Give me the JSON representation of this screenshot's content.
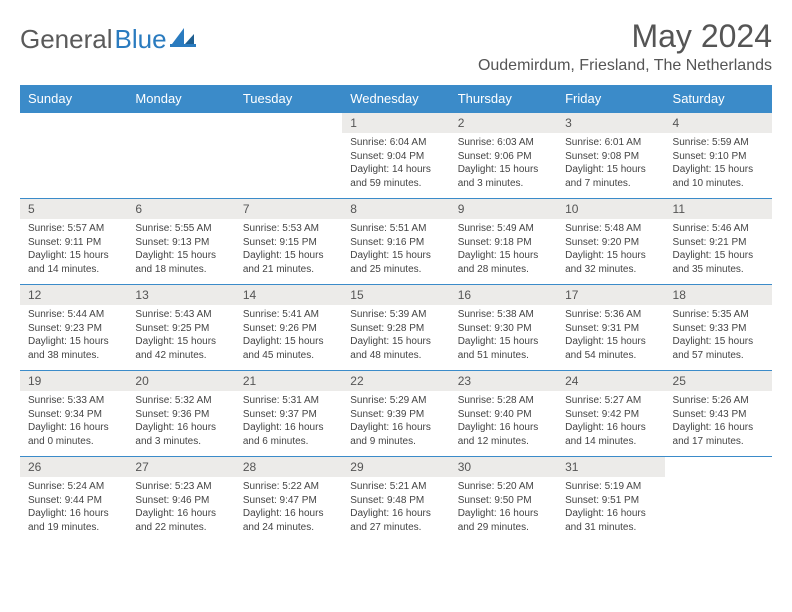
{
  "brand": {
    "part1": "General",
    "part2": "Blue"
  },
  "title": "May 2024",
  "location": "Oudemirdum, Friesland, The Netherlands",
  "colors": {
    "header_bg": "#3b8bc9",
    "header_text": "#ffffff",
    "daynum_bg": "#ecebe9",
    "border": "#3b8bc9",
    "text": "#555555",
    "brand_gray": "#5a5a5a",
    "brand_blue": "#2a7bbf"
  },
  "weekdays": [
    "Sunday",
    "Monday",
    "Tuesday",
    "Wednesday",
    "Thursday",
    "Friday",
    "Saturday"
  ],
  "weeks": [
    [
      {
        "empty": true
      },
      {
        "empty": true
      },
      {
        "empty": true
      },
      {
        "day": "1",
        "sunrise": "Sunrise: 6:04 AM",
        "sunset": "Sunset: 9:04 PM",
        "daylight": "Daylight: 14 hours and 59 minutes."
      },
      {
        "day": "2",
        "sunrise": "Sunrise: 6:03 AM",
        "sunset": "Sunset: 9:06 PM",
        "daylight": "Daylight: 15 hours and 3 minutes."
      },
      {
        "day": "3",
        "sunrise": "Sunrise: 6:01 AM",
        "sunset": "Sunset: 9:08 PM",
        "daylight": "Daylight: 15 hours and 7 minutes."
      },
      {
        "day": "4",
        "sunrise": "Sunrise: 5:59 AM",
        "sunset": "Sunset: 9:10 PM",
        "daylight": "Daylight: 15 hours and 10 minutes."
      }
    ],
    [
      {
        "day": "5",
        "sunrise": "Sunrise: 5:57 AM",
        "sunset": "Sunset: 9:11 PM",
        "daylight": "Daylight: 15 hours and 14 minutes."
      },
      {
        "day": "6",
        "sunrise": "Sunrise: 5:55 AM",
        "sunset": "Sunset: 9:13 PM",
        "daylight": "Daylight: 15 hours and 18 minutes."
      },
      {
        "day": "7",
        "sunrise": "Sunrise: 5:53 AM",
        "sunset": "Sunset: 9:15 PM",
        "daylight": "Daylight: 15 hours and 21 minutes."
      },
      {
        "day": "8",
        "sunrise": "Sunrise: 5:51 AM",
        "sunset": "Sunset: 9:16 PM",
        "daylight": "Daylight: 15 hours and 25 minutes."
      },
      {
        "day": "9",
        "sunrise": "Sunrise: 5:49 AM",
        "sunset": "Sunset: 9:18 PM",
        "daylight": "Daylight: 15 hours and 28 minutes."
      },
      {
        "day": "10",
        "sunrise": "Sunrise: 5:48 AM",
        "sunset": "Sunset: 9:20 PM",
        "daylight": "Daylight: 15 hours and 32 minutes."
      },
      {
        "day": "11",
        "sunrise": "Sunrise: 5:46 AM",
        "sunset": "Sunset: 9:21 PM",
        "daylight": "Daylight: 15 hours and 35 minutes."
      }
    ],
    [
      {
        "day": "12",
        "sunrise": "Sunrise: 5:44 AM",
        "sunset": "Sunset: 9:23 PM",
        "daylight": "Daylight: 15 hours and 38 minutes."
      },
      {
        "day": "13",
        "sunrise": "Sunrise: 5:43 AM",
        "sunset": "Sunset: 9:25 PM",
        "daylight": "Daylight: 15 hours and 42 minutes."
      },
      {
        "day": "14",
        "sunrise": "Sunrise: 5:41 AM",
        "sunset": "Sunset: 9:26 PM",
        "daylight": "Daylight: 15 hours and 45 minutes."
      },
      {
        "day": "15",
        "sunrise": "Sunrise: 5:39 AM",
        "sunset": "Sunset: 9:28 PM",
        "daylight": "Daylight: 15 hours and 48 minutes."
      },
      {
        "day": "16",
        "sunrise": "Sunrise: 5:38 AM",
        "sunset": "Sunset: 9:30 PM",
        "daylight": "Daylight: 15 hours and 51 minutes."
      },
      {
        "day": "17",
        "sunrise": "Sunrise: 5:36 AM",
        "sunset": "Sunset: 9:31 PM",
        "daylight": "Daylight: 15 hours and 54 minutes."
      },
      {
        "day": "18",
        "sunrise": "Sunrise: 5:35 AM",
        "sunset": "Sunset: 9:33 PM",
        "daylight": "Daylight: 15 hours and 57 minutes."
      }
    ],
    [
      {
        "day": "19",
        "sunrise": "Sunrise: 5:33 AM",
        "sunset": "Sunset: 9:34 PM",
        "daylight": "Daylight: 16 hours and 0 minutes."
      },
      {
        "day": "20",
        "sunrise": "Sunrise: 5:32 AM",
        "sunset": "Sunset: 9:36 PM",
        "daylight": "Daylight: 16 hours and 3 minutes."
      },
      {
        "day": "21",
        "sunrise": "Sunrise: 5:31 AM",
        "sunset": "Sunset: 9:37 PM",
        "daylight": "Daylight: 16 hours and 6 minutes."
      },
      {
        "day": "22",
        "sunrise": "Sunrise: 5:29 AM",
        "sunset": "Sunset: 9:39 PM",
        "daylight": "Daylight: 16 hours and 9 minutes."
      },
      {
        "day": "23",
        "sunrise": "Sunrise: 5:28 AM",
        "sunset": "Sunset: 9:40 PM",
        "daylight": "Daylight: 16 hours and 12 minutes."
      },
      {
        "day": "24",
        "sunrise": "Sunrise: 5:27 AM",
        "sunset": "Sunset: 9:42 PM",
        "daylight": "Daylight: 16 hours and 14 minutes."
      },
      {
        "day": "25",
        "sunrise": "Sunrise: 5:26 AM",
        "sunset": "Sunset: 9:43 PM",
        "daylight": "Daylight: 16 hours and 17 minutes."
      }
    ],
    [
      {
        "day": "26",
        "sunrise": "Sunrise: 5:24 AM",
        "sunset": "Sunset: 9:44 PM",
        "daylight": "Daylight: 16 hours and 19 minutes."
      },
      {
        "day": "27",
        "sunrise": "Sunrise: 5:23 AM",
        "sunset": "Sunset: 9:46 PM",
        "daylight": "Daylight: 16 hours and 22 minutes."
      },
      {
        "day": "28",
        "sunrise": "Sunrise: 5:22 AM",
        "sunset": "Sunset: 9:47 PM",
        "daylight": "Daylight: 16 hours and 24 minutes."
      },
      {
        "day": "29",
        "sunrise": "Sunrise: 5:21 AM",
        "sunset": "Sunset: 9:48 PM",
        "daylight": "Daylight: 16 hours and 27 minutes."
      },
      {
        "day": "30",
        "sunrise": "Sunrise: 5:20 AM",
        "sunset": "Sunset: 9:50 PM",
        "daylight": "Daylight: 16 hours and 29 minutes."
      },
      {
        "day": "31",
        "sunrise": "Sunrise: 5:19 AM",
        "sunset": "Sunset: 9:51 PM",
        "daylight": "Daylight: 16 hours and 31 minutes."
      },
      {
        "empty": true
      }
    ]
  ]
}
